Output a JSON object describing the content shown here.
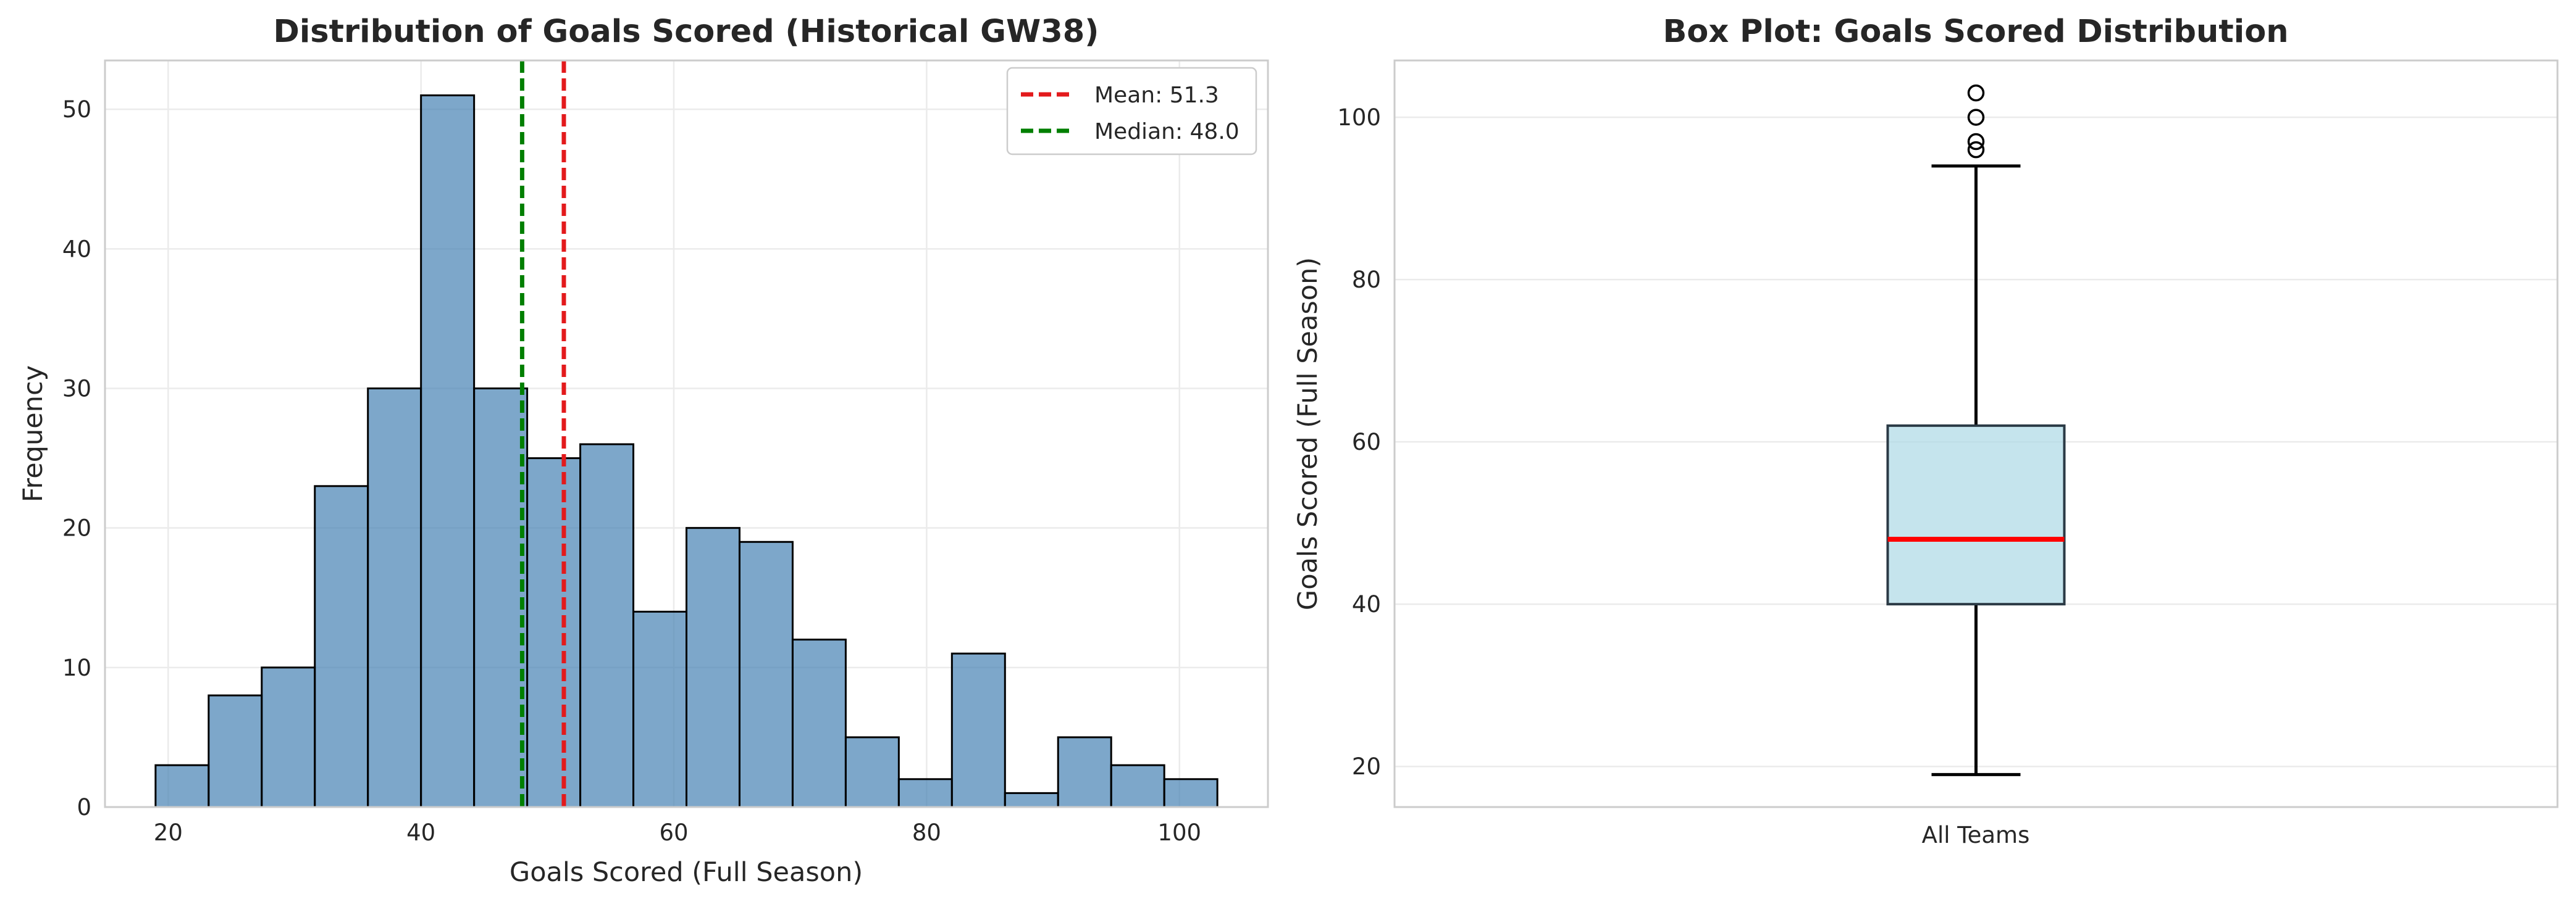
{
  "chart_data": [
    {
      "type": "histogram",
      "title": "Distribution of Goals Scored (Historical GW38)",
      "xlabel": "Goals Scored (Full Season)",
      "ylabel": "Frequency",
      "xlim": [
        15,
        107
      ],
      "ylim": [
        0,
        53.5
      ],
      "xticks": [
        20,
        40,
        60,
        80,
        100
      ],
      "yticks": [
        0,
        10,
        20,
        30,
        40,
        50
      ],
      "grid": true,
      "bar_color": "#4682b4",
      "bar_edge_color": "#000000",
      "bin_edges": [
        19,
        23.2,
        27.4,
        31.6,
        35.8,
        40,
        44.2,
        48.4,
        52.6,
        56.8,
        61,
        65.2,
        69.4,
        73.6,
        77.8,
        82,
        86.2,
        90.4,
        94.6,
        98.8,
        103
      ],
      "counts": [
        3,
        8,
        10,
        23,
        30,
        51,
        30,
        25,
        26,
        14,
        20,
        19,
        12,
        5,
        2,
        11,
        1,
        5,
        3,
        2
      ],
      "reference_lines": [
        {
          "label": "Mean: 51.3",
          "value": 51.3,
          "color": "#e31a1c",
          "style": "dashed"
        },
        {
          "label": "Median: 48.0",
          "value": 48.0,
          "color": "#007f00",
          "style": "dashed"
        }
      ],
      "legend_position": "top-right"
    },
    {
      "type": "box",
      "title": "Box Plot: Goals Scored Distribution",
      "ylabel": "Goals Scored (Full Season)",
      "categories": [
        "All Teams"
      ],
      "ylim": [
        15,
        107
      ],
      "yticks": [
        20,
        40,
        60,
        80,
        100
      ],
      "grid": true,
      "box_color": "#add8e6",
      "median_color": "#ff0000",
      "stats": {
        "whisker_low": 19,
        "q1": 40,
        "median": 48,
        "q3": 62,
        "whisker_high": 94
      },
      "outliers": [
        96,
        97,
        100,
        103
      ]
    }
  ]
}
